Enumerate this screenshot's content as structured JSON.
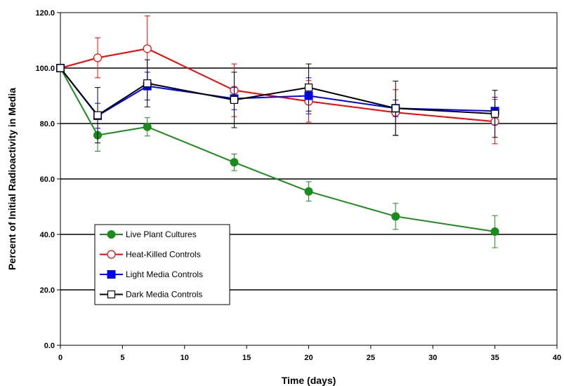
{
  "chart_data": {
    "type": "line",
    "xlabel": "Time (days)",
    "ylabel": "Percent of Initial Radioactivity in Media",
    "xlim": [
      0,
      40
    ],
    "ylim": [
      0,
      120
    ],
    "x_ticks": [
      "0",
      "5",
      "10",
      "15",
      "20",
      "25",
      "30",
      "35",
      "40"
    ],
    "y_ticks": [
      "0.0",
      "20.0",
      "40.0",
      "60.0",
      "80.0",
      "100.0",
      "120.0"
    ],
    "grid": "horizontal major gridlines at 20, 40, 60, 80, 100",
    "legend_position": "lower-left inside plot",
    "x": [
      0,
      3,
      7,
      14,
      20,
      27,
      35
    ],
    "series": [
      {
        "name": "Live Plant Cultures",
        "color": "#1a8c1a",
        "marker": "filled-circle",
        "values": [
          100,
          75.8,
          78.8,
          66.0,
          55.5,
          46.5,
          41.0
        ],
        "errors": [
          0,
          5.8,
          3.3,
          3.0,
          3.5,
          4.7,
          5.8
        ]
      },
      {
        "name": "Heat-Killed Controls",
        "color": "#ff0000",
        "marker": "open-circle",
        "values": [
          100,
          103.7,
          107.0,
          92.0,
          88.0,
          84.0,
          80.7
        ],
        "errors": [
          0,
          7.2,
          11.8,
          9.5,
          7.5,
          8.2,
          8.0
        ]
      },
      {
        "name": "Light Media Controls",
        "color": "#0000ff",
        "marker": "filled-square",
        "values": [
          100,
          82.8,
          93.5,
          89.0,
          90.0,
          85.5,
          84.5
        ],
        "errors": [
          0,
          4.5,
          5.0,
          4.0,
          6.5,
          3.0,
          5.0
        ]
      },
      {
        "name": "Dark Media Controls",
        "color": "#000000",
        "marker": "open-square",
        "values": [
          100,
          83.0,
          94.5,
          88.5,
          93.0,
          85.5,
          83.5
        ],
        "errors": [
          0,
          10.0,
          8.5,
          10.0,
          8.5,
          9.8,
          8.5
        ]
      }
    ]
  }
}
